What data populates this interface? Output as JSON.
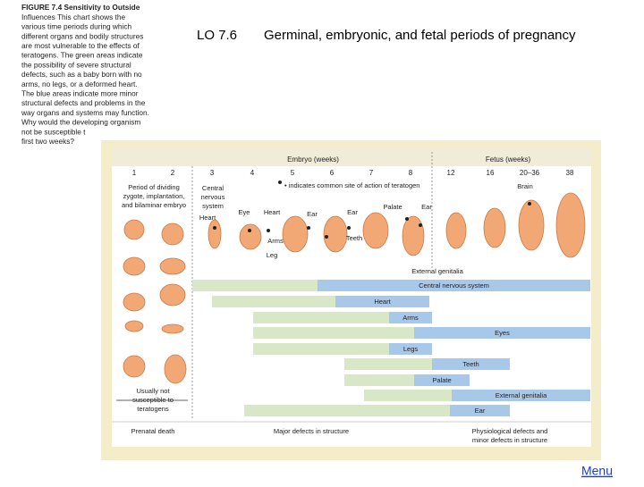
{
  "caption": {
    "lines": [
      "FIGURE 7.4  Sensitivity to Outside",
      "Influences  This chart shows the",
      "various time periods during which",
      "different organs and bodily structures",
      "are most vulnerable to the effects of",
      "teratogens. The green areas indicate",
      "the possibility of severe structural",
      "defects, such as a baby born with no",
      "arms, no legs, or a deformed heart.",
      "The blue areas indicate more minor",
      "structural defects and problems in the",
      "way organs and systems may function.",
      "Why would the developing organism",
      "not be susceptible t",
      "first two weeks?"
    ]
  },
  "title": {
    "code": "LO 7.6",
    "text": "Germinal, embryonic, and fetal periods of pregnancy"
  },
  "figure": {
    "embryo_header": "Embryo (weeks)",
    "fetus_header": "Fetus (weeks)",
    "weeks": [
      "1",
      "2",
      "3",
      "4",
      "5",
      "6",
      "7",
      "8",
      "12",
      "16",
      "20–36",
      "38"
    ],
    "legend_note": "• indicates common site of action of teratogen",
    "period_note": [
      "Period of dividing",
      "zygote, implantation,",
      "and bilaminar embryo"
    ],
    "cns_note": [
      "Central",
      "nervous",
      "system"
    ],
    "annotations": [
      "Heart",
      "Eye",
      "Heart",
      "Ear",
      "Ear",
      "Palate",
      "Ear",
      "Brain",
      "Arms",
      "Leg",
      "Teeth",
      "External genitalia"
    ],
    "rows": [
      "Central nervous system",
      "Heart",
      "Arms",
      "Eyes",
      "Legs",
      "Teeth",
      "Palate",
      "External genitalia",
      "Ear"
    ],
    "not_susceptible": [
      "Usually not",
      "susceptible to",
      "teratogens"
    ],
    "prenatal_death": "Prenatal death",
    "major_defects": "Major defects in structure",
    "minor_defects": [
      "Physiological defects and",
      "minor defects in structure"
    ]
  },
  "menu": "Menu"
}
